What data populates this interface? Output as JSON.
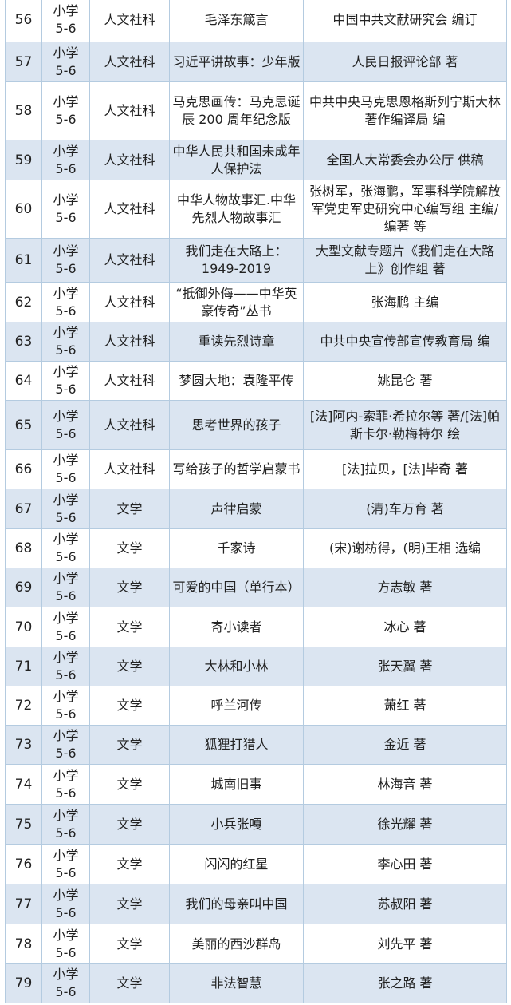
{
  "rows": [
    {
      "no": "56",
      "grade": "小学 5-6",
      "category": "人文社科",
      "title": "毛泽东箴言",
      "author": "中国中共文献研究会 编订"
    },
    {
      "no": "57",
      "grade": "小学 5-6",
      "category": "人文社科",
      "title": "习近平讲故事：少年版",
      "author": "人民日报评论部 著"
    },
    {
      "no": "58",
      "grade": "小学 5-6",
      "category": "人文社科",
      "title": "马克思画传：马克思诞辰 200 周年纪念版",
      "author": "中共中央马克思恩格斯列宁斯大林著作编译局 编"
    },
    {
      "no": "59",
      "grade": "小学 5-6",
      "category": "人文社科",
      "title": "中华人民共和国未成年人保护法",
      "author": "全国人大常委会办公厅 供稿"
    },
    {
      "no": "60",
      "grade": "小学 5-6",
      "category": "人文社科",
      "title": "中华人物故事汇.中华先烈人物故事汇",
      "author": "张树军，张海鹏，军事科学院解放军党史军史研究中心编写组 主编/编著 等"
    },
    {
      "no": "61",
      "grade": "小学 5-6",
      "category": "人文社科",
      "title": "我们走在大路上：1949-2019",
      "author": "大型文献专题片《我们走在大路上》创作组 著"
    },
    {
      "no": "62",
      "grade": "小学 5-6",
      "category": "人文社科",
      "title": "“抵御外侮——中华英豪传奇”丛书",
      "author": "张海鹏 主编"
    },
    {
      "no": "63",
      "grade": "小学 5-6",
      "category": "人文社科",
      "title": "重读先烈诗章",
      "author": "中共中央宣传部宣传教育局 编"
    },
    {
      "no": "64",
      "grade": "小学 5-6",
      "category": "人文社科",
      "title": "梦圆大地：袁隆平传",
      "author": "姚昆仑 著"
    },
    {
      "no": "65",
      "grade": "小学 5-6",
      "category": "人文社科",
      "title": "思考世界的孩子",
      "author": "[法]阿内-索菲·希拉尔等 著/[法]帕斯卡尔·勒梅特尔 绘"
    },
    {
      "no": "66",
      "grade": "小学 5-6",
      "category": "人文社科",
      "title": "写给孩子的哲学启蒙书",
      "author": "[法]拉贝，[法]毕奇 著"
    },
    {
      "no": "67",
      "grade": "小学 5-6",
      "category": "文学",
      "title": "声律启蒙",
      "author": "(清)车万育 著"
    },
    {
      "no": "68",
      "grade": "小学 5-6",
      "category": "文学",
      "title": "千家诗",
      "author": "(宋)谢枋得，(明)王相 选编"
    },
    {
      "no": "69",
      "grade": "小学 5-6",
      "category": "文学",
      "title": "可爱的中国（单行本）",
      "author": "方志敏 著"
    },
    {
      "no": "70",
      "grade": "小学 5-6",
      "category": "文学",
      "title": "寄小读者",
      "author": "冰心 著"
    },
    {
      "no": "71",
      "grade": "小学 5-6",
      "category": "文学",
      "title": "大林和小林",
      "author": "张天翼 著"
    },
    {
      "no": "72",
      "grade": "小学 5-6",
      "category": "文学",
      "title": "呼兰河传",
      "author": "萧红 著"
    },
    {
      "no": "73",
      "grade": "小学 5-6",
      "category": "文学",
      "title": "狐狸打猎人",
      "author": "金近 著"
    },
    {
      "no": "74",
      "grade": "小学 5-6",
      "category": "文学",
      "title": "城南旧事",
      "author": "林海音 著"
    },
    {
      "no": "75",
      "grade": "小学 5-6",
      "category": "文学",
      "title": "小兵张嘎",
      "author": "徐光耀 著"
    },
    {
      "no": "76",
      "grade": "小学 5-6",
      "category": "文学",
      "title": "闪闪的红星",
      "author": "李心田 著"
    },
    {
      "no": "77",
      "grade": "小学 5-6",
      "category": "文学",
      "title": "我们的母亲叫中国",
      "author": "苏叔阳 著"
    },
    {
      "no": "78",
      "grade": "小学 5-6",
      "category": "文学",
      "title": "美丽的西沙群岛",
      "author": "刘先平 著"
    },
    {
      "no": "79",
      "grade": "小学 5-6",
      "category": "文学",
      "title": "非法智慧",
      "author": "张之路 著"
    }
  ],
  "colors": {
    "stripe": "#dbe5f1",
    "border": "#b4cbe0"
  }
}
